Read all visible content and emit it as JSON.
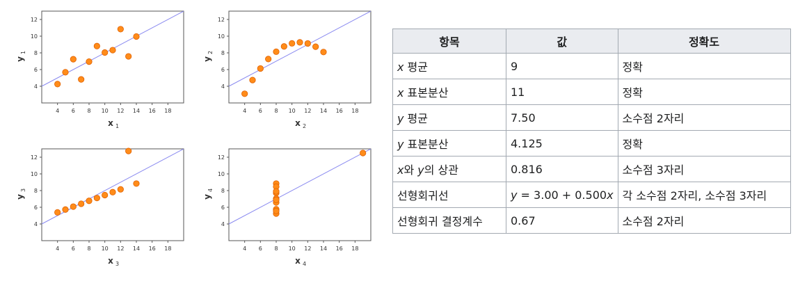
{
  "chart_data": [
    {
      "type": "scatter",
      "xlabel": "x",
      "xlabel_sub": "1",
      "ylabel": "y",
      "ylabel_sub": "1",
      "xlim": [
        2,
        20
      ],
      "ylim": [
        2,
        13
      ],
      "xticks": [
        4,
        6,
        8,
        10,
        12,
        14,
        16,
        18
      ],
      "yticks": [
        4,
        6,
        8,
        10,
        12
      ],
      "x": [
        10,
        8,
        13,
        9,
        11,
        14,
        6,
        4,
        12,
        7,
        5
      ],
      "y": [
        8.04,
        6.95,
        7.58,
        8.81,
        8.33,
        9.96,
        7.24,
        4.26,
        10.84,
        4.82,
        5.68
      ],
      "fit": {
        "intercept": 3.0,
        "slope": 0.5
      }
    },
    {
      "type": "scatter",
      "xlabel": "x",
      "xlabel_sub": "2",
      "ylabel": "y",
      "ylabel_sub": "2",
      "xlim": [
        2,
        20
      ],
      "ylim": [
        2,
        13
      ],
      "xticks": [
        4,
        6,
        8,
        10,
        12,
        14,
        16,
        18
      ],
      "yticks": [
        4,
        6,
        8,
        10,
        12
      ],
      "x": [
        10,
        8,
        13,
        9,
        11,
        14,
        6,
        4,
        12,
        7,
        5
      ],
      "y": [
        9.14,
        8.14,
        8.74,
        8.77,
        9.26,
        8.1,
        6.13,
        3.1,
        9.13,
        7.26,
        4.74
      ],
      "fit": {
        "intercept": 3.0,
        "slope": 0.5
      }
    },
    {
      "type": "scatter",
      "xlabel": "x",
      "xlabel_sub": "3",
      "ylabel": "y",
      "ylabel_sub": "3",
      "xlim": [
        2,
        20
      ],
      "ylim": [
        2,
        13
      ],
      "xticks": [
        4,
        6,
        8,
        10,
        12,
        14,
        16,
        18
      ],
      "yticks": [
        4,
        6,
        8,
        10,
        12
      ],
      "x": [
        10,
        8,
        13,
        9,
        11,
        14,
        6,
        4,
        12,
        7,
        5
      ],
      "y": [
        7.46,
        6.77,
        12.74,
        7.11,
        7.81,
        8.84,
        6.08,
        5.39,
        8.15,
        6.42,
        5.73
      ],
      "fit": {
        "intercept": 3.0,
        "slope": 0.5
      }
    },
    {
      "type": "scatter",
      "xlabel": "x",
      "xlabel_sub": "4",
      "ylabel": "y",
      "ylabel_sub": "4",
      "xlim": [
        2,
        20
      ],
      "ylim": [
        2,
        13
      ],
      "xticks": [
        4,
        6,
        8,
        10,
        12,
        14,
        16,
        18
      ],
      "yticks": [
        4,
        6,
        8,
        10,
        12
      ],
      "x": [
        8,
        8,
        8,
        8,
        8,
        8,
        8,
        19,
        8,
        8,
        8
      ],
      "y": [
        6.58,
        5.76,
        7.71,
        8.84,
        8.47,
        7.04,
        5.25,
        12.5,
        5.56,
        7.91,
        6.89
      ],
      "fit": {
        "intercept": 3.0,
        "slope": 0.5
      }
    }
  ],
  "colors": {
    "point_fill": "#ff8c1a",
    "point_stroke": "#e06000",
    "fit_line": "#8a8af0",
    "header_bg": "#eaecf0",
    "border": "#a2a9b1"
  },
  "table": {
    "headers": [
      "항목",
      "값",
      "정확도"
    ],
    "rows": [
      {
        "var": "x",
        "label": " 평균",
        "value": "9",
        "accuracy": "정확"
      },
      {
        "var": "x",
        "label": " 표본분산",
        "value": "11",
        "accuracy": "정확"
      },
      {
        "var": "y",
        "label": " 평균",
        "value": "7.50",
        "accuracy": "소수점 2자리"
      },
      {
        "var": "y",
        "label": " 표본분산",
        "value": "4.125",
        "accuracy": "정확"
      },
      {
        "label_html_parts": [
          "x",
          "와 ",
          "y",
          "의 상관"
        ],
        "value": "0.816",
        "accuracy": "소수점 3자리"
      },
      {
        "label": "선형회귀선",
        "value_parts": [
          "y",
          " = 3.00 + 0.500",
          "x"
        ],
        "accuracy": "각 소수점 2자리, 소수점 3자리"
      },
      {
        "label": "선형회귀 결정계수",
        "value": "0.67",
        "accuracy": "소수점 2자리"
      }
    ]
  }
}
